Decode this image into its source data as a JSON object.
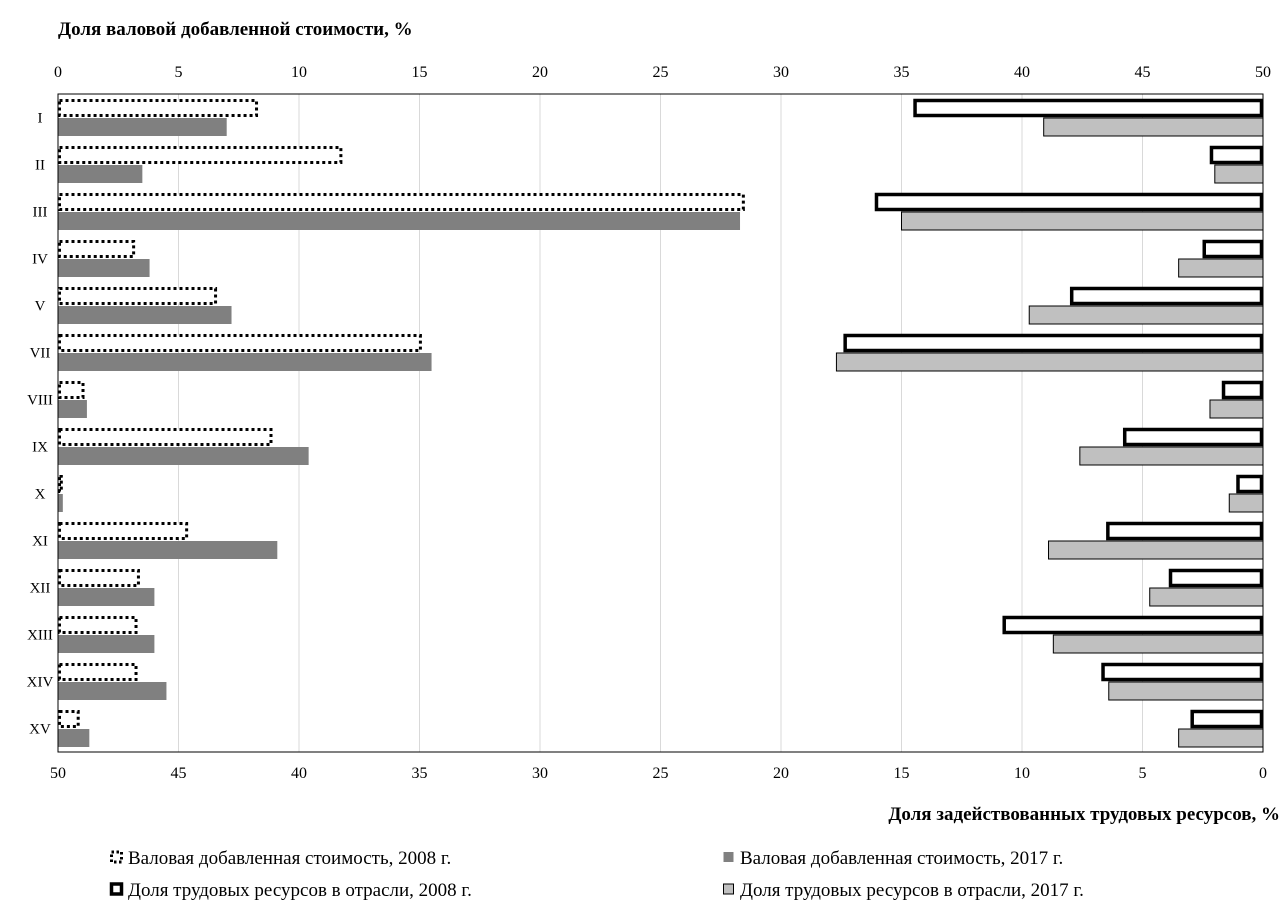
{
  "chart_data": {
    "type": "bar",
    "top_axis_title": "Доля валовой добавленной стоимости, %",
    "bottom_axis_title": "Доля  задействованных трудовых ресурсов, %",
    "top_axis": {
      "range": [
        0,
        50
      ],
      "ticks": [
        "0",
        "5",
        "10",
        "15",
        "20",
        "25",
        "30",
        "35",
        "40",
        "45",
        "50"
      ]
    },
    "bottom_axis": {
      "range": [
        50,
        0
      ],
      "ticks": [
        "50",
        "45",
        "40",
        "35",
        "30",
        "25",
        "20",
        "15",
        "10",
        "5",
        "0"
      ]
    },
    "gridlines": true,
    "categories": [
      "I",
      "II",
      "III",
      "IV",
      "V",
      "VII",
      "VIII",
      "IX",
      "X",
      "XI",
      "XII",
      "XIII",
      "XIV",
      "XV"
    ],
    "series": [
      {
        "name": "Валовая добавленная стоимость, 2008 г.",
        "direction": "left-to-right",
        "style": "dotted-outline",
        "values": [
          8.3,
          11.8,
          28.5,
          3.2,
          6.6,
          15.1,
          1.1,
          8.9,
          0.2,
          5.4,
          3.4,
          3.3,
          3.3,
          0.9
        ]
      },
      {
        "name": "Валовая добавленная стоимость, 2017 г.",
        "direction": "left-to-right",
        "style": "dark-fill",
        "values": [
          7.0,
          3.5,
          28.3,
          3.8,
          7.2,
          15.5,
          1.2,
          10.4,
          0.2,
          9.1,
          4.0,
          4.0,
          4.5,
          1.3
        ]
      },
      {
        "name": "Доля трудовых ресурсов в отрасли, 2008 г.",
        "direction": "right-to-left",
        "style": "thick-outline",
        "values": [
          14.5,
          2.2,
          16.1,
          2.5,
          8.0,
          17.4,
          1.7,
          5.8,
          1.1,
          6.5,
          3.9,
          10.8,
          6.7,
          3.0
        ]
      },
      {
        "name": "Доля трудовых ресурсов в отрасли, 2017 г.",
        "direction": "right-to-left",
        "style": "light-fill",
        "values": [
          9.1,
          2.0,
          15.0,
          3.5,
          9.7,
          17.7,
          2.2,
          7.6,
          1.4,
          8.9,
          4.7,
          8.7,
          6.4,
          3.5
        ]
      }
    ],
    "legend": [
      "Валовая добавленная стоимость, 2008 г.",
      "Валовая добавленная стоимость, 2017 г.",
      "Доля трудовых ресурсов в отрасли, 2008 г.",
      "Доля трудовых ресурсов в отрасли, 2017 г."
    ],
    "colors": {
      "dark": "#808080",
      "light": "#c0c0c0",
      "outline": "#000000",
      "grid": "#d9d9d9"
    }
  }
}
